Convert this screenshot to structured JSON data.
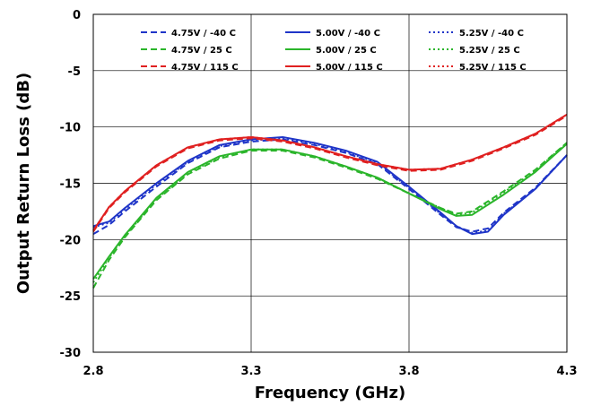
{
  "chart_data": {
    "type": "line",
    "xlabel": "Frequency (GHz)",
    "ylabel": "Output Return Loss (dB)",
    "xlim": [
      2.8,
      4.3
    ],
    "ylim": [
      -30,
      0
    ],
    "x_ticks": [
      "2.8",
      "3.3",
      "3.8",
      "4.3"
    ],
    "y_ticks": [
      "0",
      "-5",
      "-10",
      "-15",
      "-20",
      "-25",
      "-30"
    ],
    "grid": true,
    "legend_position": "top",
    "series": [
      {
        "name": "4.75V / -40 C",
        "color": "#1f35c8",
        "dash": "dashed",
        "x": [
          2.8,
          2.85,
          2.9,
          3.0,
          3.1,
          3.2,
          3.3,
          3.4,
          3.5,
          3.6,
          3.7,
          3.8,
          3.9,
          3.95,
          4.0,
          4.05,
          4.1,
          4.2,
          4.3
        ],
        "y": [
          -19.5,
          -18.7,
          -17.5,
          -15.3,
          -13.2,
          -11.8,
          -11.3,
          -11.1,
          -11.6,
          -12.3,
          -13.3,
          -15.5,
          -17.8,
          -18.9,
          -19.3,
          -19.0,
          -17.6,
          -15.4,
          -12.5
        ]
      },
      {
        "name": "5.00V / -40 C",
        "color": "#1f35c8",
        "dash": "solid",
        "x": [
          2.8,
          2.85,
          2.9,
          3.0,
          3.1,
          3.2,
          3.3,
          3.4,
          3.5,
          3.6,
          3.7,
          3.8,
          3.9,
          3.95,
          4.0,
          4.05,
          4.1,
          4.2,
          4.3
        ],
        "y": [
          -18.8,
          -18.4,
          -17.2,
          -15.0,
          -13.0,
          -11.6,
          -11.1,
          -10.9,
          -11.4,
          -12.1,
          -13.1,
          -15.3,
          -17.6,
          -18.8,
          -19.5,
          -19.3,
          -17.8,
          -15.5,
          -12.5
        ]
      },
      {
        "name": "5.25V / -40 C",
        "color": "#1f35c8",
        "dash": "dotted",
        "x": [
          2.8,
          2.85,
          2.9,
          3.0,
          3.1,
          3.2,
          3.3,
          3.4,
          3.5,
          3.6,
          3.7,
          3.8,
          3.9,
          3.95,
          4.0,
          4.05,
          4.1,
          4.2,
          4.3
        ],
        "y": [
          -18.9,
          -18.5,
          -17.3,
          -15.1,
          -13.1,
          -11.7,
          -11.2,
          -11.0,
          -11.5,
          -12.2,
          -13.2,
          -15.4,
          -17.7,
          -18.8,
          -19.4,
          -19.2,
          -17.7,
          -15.5,
          -12.5
        ]
      },
      {
        "name": "4.75V / 25 C",
        "color": "#2bb52b",
        "dash": "dashed",
        "x": [
          2.8,
          2.85,
          2.9,
          3.0,
          3.1,
          3.2,
          3.3,
          3.4,
          3.5,
          3.6,
          3.7,
          3.8,
          3.9,
          3.95,
          4.0,
          4.05,
          4.1,
          4.2,
          4.3
        ],
        "y": [
          -24.3,
          -21.8,
          -19.8,
          -16.5,
          -14.2,
          -12.8,
          -12.1,
          -12.1,
          -12.7,
          -13.6,
          -14.6,
          -15.9,
          -17.2,
          -17.7,
          -17.5,
          -16.6,
          -15.7,
          -13.8,
          -11.4
        ]
      },
      {
        "name": "5.00V / 25 C",
        "color": "#2bb52b",
        "dash": "solid",
        "x": [
          2.8,
          2.85,
          2.9,
          3.0,
          3.1,
          3.2,
          3.3,
          3.4,
          3.5,
          3.6,
          3.7,
          3.8,
          3.9,
          3.95,
          4.0,
          4.05,
          4.1,
          4.2,
          4.3
        ],
        "y": [
          -23.5,
          -21.5,
          -19.6,
          -16.3,
          -14.0,
          -12.6,
          -12.0,
          -12.0,
          -12.6,
          -13.5,
          -14.5,
          -15.9,
          -17.3,
          -17.9,
          -17.8,
          -16.9,
          -16.0,
          -14.0,
          -11.5
        ]
      },
      {
        "name": "5.25V / 25 C",
        "color": "#2bb52b",
        "dash": "dotted",
        "x": [
          2.8,
          2.85,
          2.9,
          3.0,
          3.1,
          3.2,
          3.3,
          3.4,
          3.5,
          3.6,
          3.7,
          3.8,
          3.9,
          3.95,
          4.0,
          4.05,
          4.1,
          4.2,
          4.3
        ],
        "y": [
          -23.8,
          -21.6,
          -19.7,
          -16.4,
          -14.1,
          -12.7,
          -12.0,
          -12.0,
          -12.6,
          -13.5,
          -14.5,
          -15.9,
          -17.2,
          -17.8,
          -17.6,
          -16.7,
          -15.8,
          -13.9,
          -11.4
        ]
      },
      {
        "name": "4.75V / 115 C",
        "color": "#e02020",
        "dash": "dashed",
        "x": [
          2.8,
          2.85,
          2.9,
          3.0,
          3.1,
          3.2,
          3.3,
          3.4,
          3.5,
          3.6,
          3.7,
          3.8,
          3.9,
          4.0,
          4.1,
          4.2,
          4.3
        ],
        "y": [
          -19.3,
          -17.2,
          -15.8,
          -13.5,
          -11.9,
          -11.2,
          -11.0,
          -11.3,
          -11.9,
          -12.7,
          -13.4,
          -13.9,
          -13.8,
          -13.0,
          -11.9,
          -10.7,
          -9.0
        ]
      },
      {
        "name": "5.00V / 115 C",
        "color": "#e02020",
        "dash": "solid",
        "x": [
          2.8,
          2.85,
          2.9,
          3.0,
          3.1,
          3.2,
          3.3,
          3.4,
          3.5,
          3.6,
          3.7,
          3.8,
          3.9,
          4.0,
          4.1,
          4.2,
          4.3
        ],
        "y": [
          -19.2,
          -17.1,
          -15.7,
          -13.4,
          -11.8,
          -11.1,
          -10.9,
          -11.2,
          -11.8,
          -12.6,
          -13.3,
          -13.8,
          -13.7,
          -12.9,
          -11.8,
          -10.6,
          -8.9
        ]
      },
      {
        "name": "5.25V / 115 C",
        "color": "#e02020",
        "dash": "dotted",
        "x": [
          2.8,
          2.85,
          2.9,
          3.0,
          3.1,
          3.2,
          3.3,
          3.4,
          3.5,
          3.6,
          3.7,
          3.8,
          3.9,
          4.0,
          4.1,
          4.2,
          4.3
        ],
        "y": [
          -19.2,
          -17.1,
          -15.7,
          -13.4,
          -11.8,
          -11.1,
          -10.9,
          -11.2,
          -11.8,
          -12.6,
          -13.3,
          -13.8,
          -13.7,
          -12.9,
          -11.8,
          -10.6,
          -8.9
        ]
      }
    ]
  }
}
